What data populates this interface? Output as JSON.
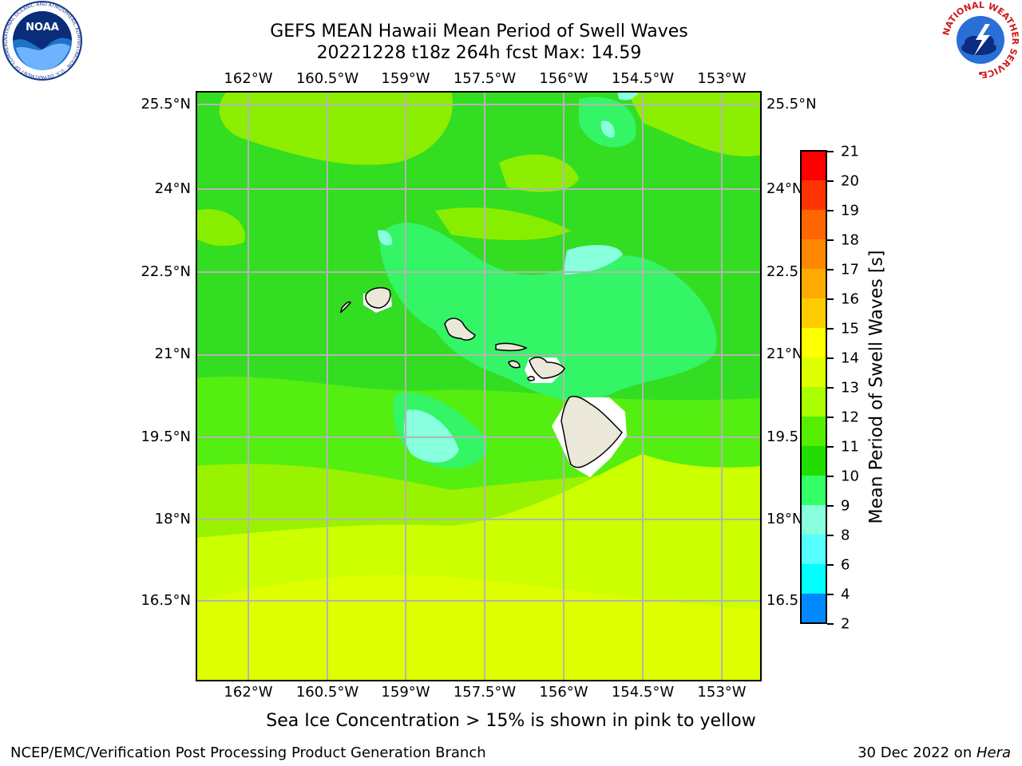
{
  "header": {
    "title_line1": "GEFS MEAN Hawaii Mean Period of Swell Waves",
    "title_line2": "20221228 t18z 264h fcst   Max: 14.59"
  },
  "map": {
    "lon_labels": [
      "162°W",
      "160.5°W",
      "159°W",
      "157.5°W",
      "156°W",
      "154.5°W",
      "153°W"
    ],
    "lat_labels_left": [
      "25.5°N",
      "24°N",
      "22.5°N",
      "21°N",
      "19.5°N",
      "18°N",
      "16.5°N"
    ],
    "lat_labels_right": [
      "25.5°N",
      "24°N",
      "22.5",
      "21°N",
      "19.5",
      "18°N",
      "16.5"
    ]
  },
  "colorbar": {
    "label": "Mean Period of Swell Waves [s]",
    "ticks": [
      "21",
      "20",
      "19",
      "18",
      "17",
      "16",
      "15",
      "14",
      "13",
      "12",
      "11",
      "10",
      "9",
      "8",
      "6",
      "4",
      "2"
    ],
    "colors": [
      "#ff0000",
      "#ff3300",
      "#ff6600",
      "#ff8800",
      "#ffaa00",
      "#ffcc00",
      "#ffff00",
      "#ddff00",
      "#aaff00",
      "#55ee00",
      "#22dd00",
      "#33ff66",
      "#88ffdd",
      "#55ffff",
      "#00ffff",
      "#0088ff",
      "#0000ff"
    ]
  },
  "footer": {
    "note": "Sea Ice Concentration > 15% is shown in pink to yellow",
    "left": "NCEP/EMC/Verification Post Processing Product Generation Branch",
    "right_prefix": "30 Dec 2022 on ",
    "right_host": "Hera"
  },
  "logos": {
    "noaa_text": "NOAA",
    "noaa_ring": "NATIONAL OCEANIC AND ATMOSPHERIC ADMINISTRATION · U.S. DEPARTMENT OF COMMERCE",
    "nws_ring": "NATIONAL WEATHER SERVICE"
  }
}
